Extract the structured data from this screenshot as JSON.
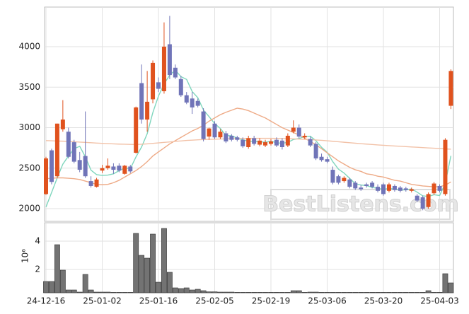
{
  "chart_data": [
    {
      "type": "candlestick",
      "watermark": "BestListens.com",
      "up_color": "#e0521e",
      "down_color": "#7074b8",
      "ylim": [
        1843,
        4489
      ],
      "yticks": [
        2000,
        2500,
        3000,
        3500,
        4000
      ],
      "grid": true,
      "open": [
        2180,
        2720,
        2400,
        2980,
        2950,
        2820,
        2600,
        2650,
        2340,
        2270,
        2470,
        2500,
        2520,
        2530,
        2430,
        2520,
        2690,
        3550,
        3100,
        3350,
        3560,
        3450,
        4030,
        3740,
        3600,
        3400,
        3360,
        3330,
        3200,
        2890,
        3050,
        2880,
        2930,
        2900,
        2880,
        2850,
        2760,
        2870,
        2790,
        2780,
        2800,
        2850,
        2840,
        2780,
        2950,
        3000,
        2880,
        2860,
        2800,
        2640,
        2610,
        2480,
        2400,
        2340,
        2360,
        2320,
        2260,
        2300,
        2320,
        2270,
        2300,
        2220,
        2280,
        2260,
        2250,
        2220,
        2160,
        2140,
        2020,
        2190,
        2280,
        2180,
        3270
      ],
      "high": [
        2640,
        2740,
        3050,
        3340,
        3000,
        2850,
        2700,
        3200,
        2400,
        2380,
        2540,
        2620,
        2560,
        2560,
        2540,
        2540,
        3260,
        3780,
        3700,
        3830,
        3620,
        4300,
        4380,
        3780,
        3640,
        3440,
        3440,
        3360,
        3240,
        3000,
        3080,
        2980,
        2960,
        2920,
        2900,
        2880,
        2900,
        2900,
        2870,
        2850,
        2860,
        2880,
        2870,
        2930,
        3090,
        3040,
        2930,
        2890,
        2820,
        2680,
        2640,
        2520,
        2420,
        2400,
        2380,
        2340,
        2290,
        2320,
        2340,
        2300,
        2320,
        2320,
        2300,
        2280,
        2270,
        2260,
        2180,
        2160,
        2200,
        2330,
        2300,
        2870,
        3720
      ],
      "low": [
        2170,
        2300,
        2380,
        2950,
        2620,
        2560,
        2450,
        2380,
        2260,
        2260,
        2440,
        2480,
        2430,
        2450,
        2420,
        2440,
        2680,
        3050,
        2950,
        3300,
        3440,
        3420,
        3600,
        3600,
        3380,
        3290,
        3170,
        3250,
        2830,
        2850,
        2860,
        2860,
        2810,
        2830,
        2830,
        2750,
        2740,
        2780,
        2770,
        2760,
        2780,
        2760,
        2730,
        2760,
        2930,
        2870,
        2860,
        2760,
        2600,
        2580,
        2560,
        2300,
        2300,
        2320,
        2250,
        2230,
        2220,
        2260,
        2250,
        2200,
        2160,
        2200,
        2210,
        2200,
        2210,
        2200,
        2080,
        1980,
        2000,
        2170,
        2200,
        2160,
        3230
      ],
      "close": [
        2620,
        2330,
        3050,
        3100,
        2640,
        2580,
        2480,
        2400,
        2280,
        2360,
        2500,
        2530,
        2480,
        2470,
        2530,
        2460,
        3250,
        3100,
        3320,
        3800,
        3480,
        4000,
        3650,
        3620,
        3400,
        3310,
        3250,
        3270,
        2860,
        2990,
        2880,
        2950,
        2830,
        2850,
        2850,
        2770,
        2870,
        2800,
        2840,
        2820,
        2830,
        2780,
        2760,
        2900,
        3000,
        2890,
        2900,
        2780,
        2620,
        2600,
        2580,
        2320,
        2320,
        2380,
        2270,
        2250,
        2240,
        2280,
        2270,
        2220,
        2180,
        2300,
        2230,
        2220,
        2230,
        2240,
        2100,
        2000,
        2180,
        2310,
        2220,
        2850,
        3700
      ],
      "series": [
        {
          "color": "#7fd6bd",
          "values": [
            2020,
            2200,
            2380,
            2550,
            2650,
            2740,
            2770,
            2640,
            2476,
            2420,
            2410,
            2414,
            2430,
            2468,
            2502,
            2494,
            2638,
            2762,
            2926,
            3186,
            3390,
            3540,
            3650,
            3710,
            3630,
            3596,
            3446,
            3370,
            3218,
            3136,
            3050,
            2990,
            2902,
            2900,
            2872,
            2850,
            2834,
            2828,
            2826,
            2820,
            2832,
            2814,
            2806,
            2818,
            2854,
            2866,
            2890,
            2894,
            2838,
            2758,
            2696,
            2580,
            2488,
            2440,
            2374,
            2308,
            2292,
            2284,
            2262,
            2252,
            2238,
            2250,
            2240,
            2230,
            2232,
            2244,
            2204,
            2158,
            2150,
            2172,
            2162,
            2312,
            2652
          ]
        },
        {
          "color": "#eeaa86",
          "values": [
            2370,
            2375,
            2380,
            2380,
            2375,
            2370,
            2360,
            2340,
            2320,
            2300,
            2295,
            2300,
            2320,
            2350,
            2390,
            2430,
            2470,
            2520,
            2580,
            2650,
            2700,
            2750,
            2800,
            2840,
            2880,
            2920,
            2960,
            2990,
            3030,
            3080,
            3120,
            3160,
            3190,
            3215,
            3240,
            3230,
            3210,
            3180,
            3150,
            3120,
            3080,
            3040,
            3000,
            2970,
            2940,
            2910,
            2870,
            2830,
            2790,
            2740,
            2690,
            2640,
            2590,
            2550,
            2510,
            2480,
            2460,
            2430,
            2420,
            2400,
            2390,
            2370,
            2350,
            2340,
            2320,
            2300,
            2290,
            2280,
            2275,
            2270,
            2270,
            2290,
            2330
          ]
        },
        {
          "color": "#f2c2a8",
          "values": [
            2840,
            2838,
            2835,
            2833,
            2830,
            2826,
            2822,
            2818,
            2814,
            2810,
            2806,
            2803,
            2800,
            2797,
            2795,
            2793,
            2792,
            2795,
            2800,
            2806,
            2812,
            2818,
            2824,
            2830,
            2836,
            2842,
            2846,
            2850,
            2853,
            2856,
            2858,
            2860,
            2862,
            2864,
            2865,
            2866,
            2867,
            2868,
            2868,
            2868,
            2868,
            2867,
            2866,
            2864,
            2862,
            2859,
            2856,
            2852,
            2848,
            2843,
            2838,
            2832,
            2826,
            2820,
            2814,
            2808,
            2802,
            2797,
            2792,
            2787,
            2782,
            2778,
            2774,
            2770,
            2766,
            2762,
            2758,
            2754,
            2750,
            2746,
            2742,
            2738,
            2734
          ]
        }
      ]
    },
    {
      "type": "bar",
      "ylabel": "10⁶",
      "color": "#737373",
      "ylim": [
        0.35,
        5.3
      ],
      "yticks": [
        2,
        4
      ],
      "categories": [
        "24-12-16",
        null,
        null,
        null,
        null,
        null,
        null,
        null,
        null,
        null,
        "25-01-02",
        null,
        null,
        null,
        null,
        null,
        null,
        null,
        null,
        null,
        "25-01-16",
        null,
        null,
        null,
        null,
        null,
        null,
        null,
        null,
        null,
        "25-02-05",
        null,
        null,
        null,
        null,
        null,
        null,
        null,
        null,
        null,
        "25-02-19",
        null,
        null,
        null,
        null,
        null,
        null,
        null,
        null,
        null,
        "25-03-06",
        null,
        null,
        null,
        null,
        null,
        null,
        null,
        null,
        null,
        "25-03-20",
        null,
        null,
        null,
        null,
        null,
        null,
        null,
        null,
        null,
        "25-04-03",
        null,
        null
      ],
      "values": [
        1.15,
        1.15,
        3.75,
        1.95,
        0.55,
        0.55,
        0.4,
        1.65,
        0.55,
        0.4,
        0.4,
        0.4,
        0.38,
        0.38,
        0.38,
        0.38,
        4.55,
        3.0,
        2.8,
        4.5,
        1.1,
        4.9,
        1.8,
        0.7,
        0.65,
        0.7,
        0.55,
        0.6,
        0.5,
        0.42,
        0.42,
        0.4,
        0.4,
        0.4,
        0.38,
        0.38,
        0.38,
        0.38,
        0.38,
        0.38,
        0.38,
        0.38,
        0.38,
        0.38,
        0.5,
        0.5,
        0.38,
        0.4,
        0.4,
        0.38,
        0.38,
        0.38,
        0.38,
        0.38,
        0.38,
        0.38,
        0.38,
        0.38,
        0.38,
        0.38,
        0.38,
        0.38,
        0.38,
        0.38,
        0.38,
        0.38,
        0.38,
        0.38,
        0.5,
        0.38,
        0.38,
        1.7,
        1.05
      ]
    }
  ]
}
